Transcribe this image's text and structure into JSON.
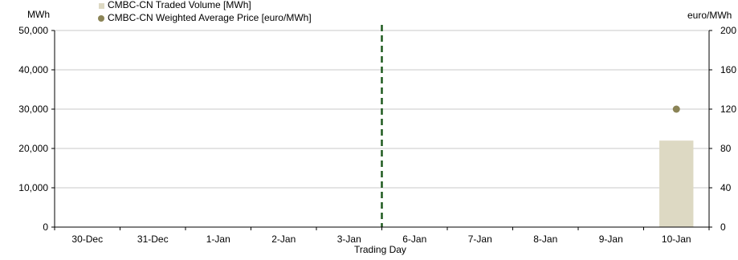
{
  "chart_data": {
    "type": "bar",
    "title": "",
    "xlabel": "Trading Day",
    "categories": [
      "30-Dec",
      "31-Dec",
      "1-Jan",
      "2-Jan",
      "3-Jan",
      "6-Jan",
      "7-Jan",
      "8-Jan",
      "9-Jan",
      "10-Jan"
    ],
    "y_left": {
      "unit": "MWh",
      "ylim": [
        0,
        50000
      ],
      "ticks": [
        "0",
        "10,000",
        "20,000",
        "30,000",
        "40,000",
        "50,000"
      ],
      "tick_values": [
        0,
        10000,
        20000,
        30000,
        40000,
        50000
      ]
    },
    "y_right": {
      "unit": "euro/MWh",
      "ylim": [
        0,
        200
      ],
      "ticks": [
        "0",
        "40",
        "80",
        "120",
        "160",
        "200"
      ],
      "tick_values": [
        0,
        40,
        80,
        120,
        160,
        200
      ]
    },
    "series": [
      {
        "name": "CMBC-CN Traded Volume [MWh]",
        "type": "bar",
        "axis": "left",
        "color": "#ddd9c3",
        "values": [
          null,
          null,
          null,
          null,
          null,
          null,
          null,
          null,
          null,
          22000
        ]
      },
      {
        "name": "CMBC-CN Weighted Average Price [euro/MWh]",
        "type": "scatter",
        "axis": "right",
        "color": "#8b8456",
        "values": [
          null,
          null,
          null,
          null,
          null,
          null,
          null,
          null,
          null,
          120
        ]
      }
    ],
    "separator": {
      "between": [
        "3-Jan",
        "6-Jan"
      ],
      "style": "dashed",
      "color": "#1e5a1e"
    },
    "grid": true,
    "legend_position": "top-left"
  }
}
